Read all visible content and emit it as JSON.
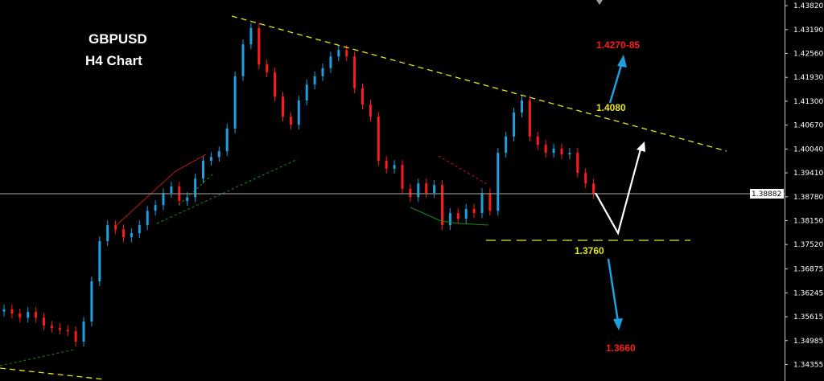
{
  "chart_data": {
    "type": "candlestick",
    "title": "GBPUSD",
    "subtitle": "H4 Chart",
    "ylim": [
      1.3392,
      1.4397
    ],
    "grid": false,
    "y_ticks": [
      "1.43820",
      "1.43190",
      "1.42560",
      "1.41930",
      "1.41300",
      "1.40670",
      "1.40040",
      "1.39410",
      "1.38780",
      "1.38150",
      "1.37520",
      "1.36875",
      "1.36245",
      "1.35615",
      "1.34985",
      "1.34355"
    ],
    "current_price": "1.38882",
    "first_open": 1.3575,
    "close": [
      1.3581,
      1.357,
      1.3559,
      1.3574,
      1.3559,
      1.3538,
      1.3532,
      1.3527,
      1.3523,
      1.3496,
      1.3549,
      1.3655,
      1.3761,
      1.3803,
      1.3792,
      1.3771,
      1.3782,
      1.3803,
      1.3841,
      1.3856,
      1.3888,
      1.3905,
      1.3867,
      1.3877,
      1.3926,
      1.3973,
      1.3983,
      1.3998,
      1.4058,
      1.4196,
      1.428,
      1.4323,
      1.4227,
      1.4206,
      1.4142,
      1.4089,
      1.4068,
      1.4132,
      1.4174,
      1.4196,
      1.4217,
      1.4248,
      1.4265,
      1.4248,
      1.4164,
      1.4121,
      1.4089,
      1.3973,
      1.3952,
      1.3962,
      1.3899,
      1.3877,
      1.3913,
      1.3888,
      1.3909,
      1.3803,
      1.3835,
      1.382,
      1.3846,
      1.3835,
      1.3888,
      1.3841,
      1.3994,
      1.4037,
      1.41,
      1.4132,
      1.4037,
      1.4015,
      1.3994,
      1.4005,
      1.399,
      1.3994,
      1.3941,
      1.3913,
      1.3886
    ],
    "annotations": {
      "target_up": "1.4270-85",
      "resistance": "1.4080",
      "support": "1.3760",
      "target_down": "1.3660"
    },
    "colors": {
      "up": "#1e9fe0",
      "down": "#ff1a1a",
      "trendline": "#e6e61e",
      "price_line": "#8a8a8a",
      "arrow": "#1e9fe0",
      "target": "#ff1a1a"
    }
  }
}
